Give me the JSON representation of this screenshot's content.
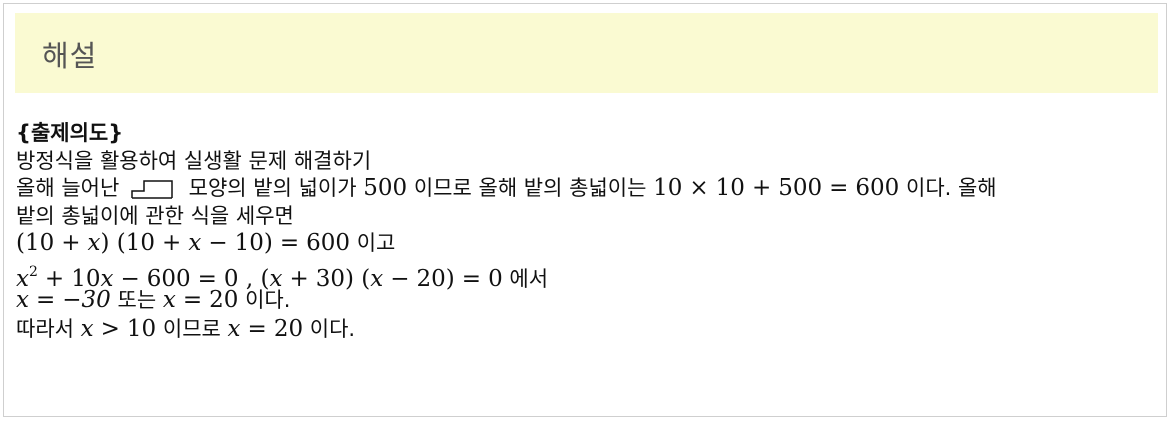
{
  "header": {
    "title": "해설"
  },
  "content": {
    "intent_label": "{출제의도}",
    "intent_text": "방정식을 활용하여 실생활 문제 해결하기",
    "line3": {
      "t1": "올해 늘어난",
      "shape_icon": "step-shape-icon",
      "t2": "모양의 밭의 넓이가",
      "n500": "500",
      "t3": "이므로 올해 밭의 총넓이는",
      "e1": "10",
      "times": "×",
      "e2": "10",
      "plus": "+",
      "e3": "500",
      "eq": "=",
      "e4": "600",
      "t4": "이다. 올해"
    },
    "line4": "밭의 총넓이에 관한 식을 세우면",
    "line5": {
      "expr": "(10 + x) (10 + x − 10) = 600",
      "suffix": "이고"
    },
    "line6": {
      "expr": "x² + 10x − 600 = 0 , (x + 30) (x − 20) = 0",
      "suffix": "에서"
    },
    "line7": {
      "p1": "x = −30",
      "mid": "또는",
      "p2": "x = 20",
      "suffix": "이다."
    },
    "line8": {
      "prefix": "따라서",
      "p1": "x > 10",
      "mid": "이므로",
      "p2": "x = 20",
      "suffix": "이다."
    }
  }
}
